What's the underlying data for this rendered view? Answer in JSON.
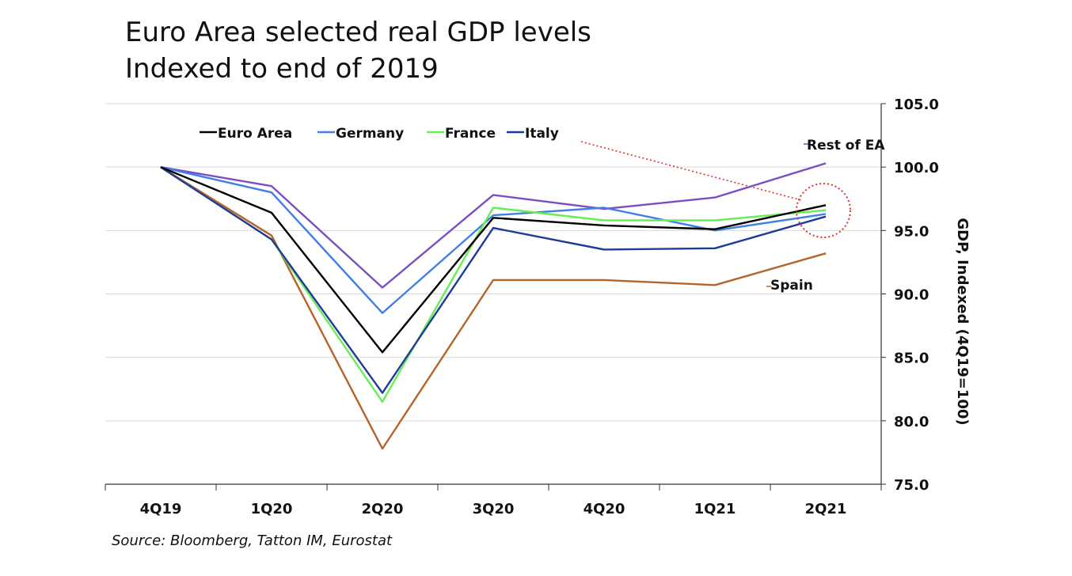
{
  "title_lines": [
    "Euro Area selected real GDP levels",
    "Indexed to end of 2019"
  ],
  "source": "Source: Bloomberg, Tatton IM, Eurostat",
  "chart_data": {
    "type": "line",
    "categories": [
      "4Q19",
      "1Q20",
      "2Q20",
      "3Q20",
      "4Q20",
      "1Q21",
      "2Q21"
    ],
    "ylabel": "GDP, Indexed (4Q19=100)",
    "ylim": [
      75,
      105
    ],
    "yticks": [
      75,
      80,
      85,
      90,
      95,
      100,
      105
    ],
    "ytick_labels": [
      "75.0",
      "80.0",
      "85.0",
      "90.0",
      "95.0",
      "100.0",
      "105.0"
    ],
    "y_axis_position": "right",
    "grid": true,
    "legend_position": "top-left",
    "series": [
      {
        "name": "Euro Area",
        "color": "#000000",
        "in_legend": true,
        "values": [
          100.0,
          96.4,
          85.4,
          96.0,
          95.4,
          95.1,
          97.0
        ]
      },
      {
        "name": "Germany",
        "color": "#3f7fe6",
        "in_legend": true,
        "values": [
          100.0,
          98.0,
          88.5,
          96.2,
          96.8,
          95.0,
          96.3
        ]
      },
      {
        "name": "France",
        "color": "#66ee55",
        "in_legend": true,
        "values": [
          100.0,
          94.3,
          81.5,
          96.8,
          95.8,
          95.8,
          96.6
        ]
      },
      {
        "name": "Italy",
        "color": "#1f3a99",
        "in_legend": true,
        "values": [
          100.0,
          94.3,
          82.2,
          95.2,
          93.5,
          93.6,
          96.1
        ]
      },
      {
        "name": "Rest of EA",
        "color": "#7a4ec2",
        "in_legend": false,
        "values": [
          100.0,
          98.5,
          90.5,
          97.8,
          96.7,
          97.6,
          100.3
        ]
      },
      {
        "name": "Spain",
        "color": "#b5642a",
        "in_legend": false,
        "values": [
          100.0,
          94.6,
          77.8,
          91.1,
          91.1,
          90.7,
          93.2
        ]
      }
    ],
    "annotations": [
      "Rest of EA",
      "Spain"
    ]
  }
}
